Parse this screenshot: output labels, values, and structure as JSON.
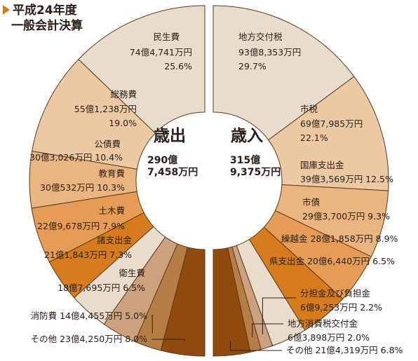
{
  "title": {
    "line1": "平成24年度",
    "line2": "一般会計決算"
  },
  "chart_data": {
    "type": "pie",
    "variant": "two-half-donuts",
    "units": "億円",
    "expenditure": {
      "heading": "歳出",
      "total_line1": "290億",
      "total_line2": "7,458万円",
      "slices": [
        {
          "name": "民生費",
          "value": 74.4741,
          "amount": "74億4,741万円",
          "percent": "25.6%",
          "color": "#e8dccb"
        },
        {
          "name": "総務費",
          "value": 55.1238,
          "amount": "55億1,238万円",
          "percent": "19.0%",
          "color": "#ecc9a2"
        },
        {
          "name": "公債費",
          "value": 30.3026,
          "amount": "30億3,026万円",
          "percent": "10.4%",
          "color": "#eab57e"
        },
        {
          "name": "教育費",
          "value": 30.0532,
          "amount": "30億532万円",
          "percent": "10.3%",
          "color": "#e59d55"
        },
        {
          "name": "土木費",
          "value": 22.9678,
          "amount": "22億9,678万円",
          "percent": "7.9%",
          "color": "#d77c1c"
        },
        {
          "name": "諸支出金",
          "value": 21.1843,
          "amount": "21億1,843万円",
          "percent": "7.3%",
          "color": "#e8dccb"
        },
        {
          "name": "衛生費",
          "value": 18.7695,
          "amount": "18億7,695万円",
          "percent": "6.5%",
          "color": "#cba27c"
        },
        {
          "name": "消防費",
          "value": 14.4455,
          "amount": "14億4,455万円",
          "percent": "5.0%",
          "color": "#b57e45"
        },
        {
          "name": "その他",
          "value": 23.425,
          "amount": "23億4,250万円",
          "percent": "8.0%",
          "color": "#8f4a0c"
        }
      ]
    },
    "revenue": {
      "heading": "歳入",
      "total_line1": "315億",
      "total_line2": "9,375万円",
      "slices": [
        {
          "name": "地方交付税",
          "value": 93.8353,
          "amount": "93億8,353万円",
          "percent": "29.7%",
          "color": "#e8dccb"
        },
        {
          "name": "市税",
          "value": 69.7985,
          "amount": "69億7,985万円",
          "percent": "22.1%",
          "color": "#ecc9a2"
        },
        {
          "name": "国庫支出金",
          "value": 39.3569,
          "amount": "39億3,569万円",
          "percent": "12.5%",
          "color": "#eab57e"
        },
        {
          "name": "市債",
          "value": 29.37,
          "amount": "29億3,700万円",
          "percent": "9.3%",
          "color": "#e59d55"
        },
        {
          "name": "繰越金",
          "value": 28.1858,
          "amount": "28億1,858万円",
          "percent": "8.9%",
          "color": "#d77c1c"
        },
        {
          "name": "県支出金",
          "value": 20.644,
          "amount": "20億6,440万円",
          "percent": "6.5%",
          "color": "#e8dccb"
        },
        {
          "name": "分担金及び負担金",
          "value": 6.9253,
          "amount": "6億9,253万円",
          "percent": "2.2%",
          "color": "#cba27c"
        },
        {
          "name": "地方消費税交付金",
          "value": 6.3898,
          "amount": "6億3,898万円",
          "percent": "2.0%",
          "color": "#b57e45"
        },
        {
          "name": "その他",
          "value": 21.4319,
          "amount": "21億4,319万円",
          "percent": "6.8%",
          "color": "#8f4a0c"
        }
      ]
    }
  }
}
